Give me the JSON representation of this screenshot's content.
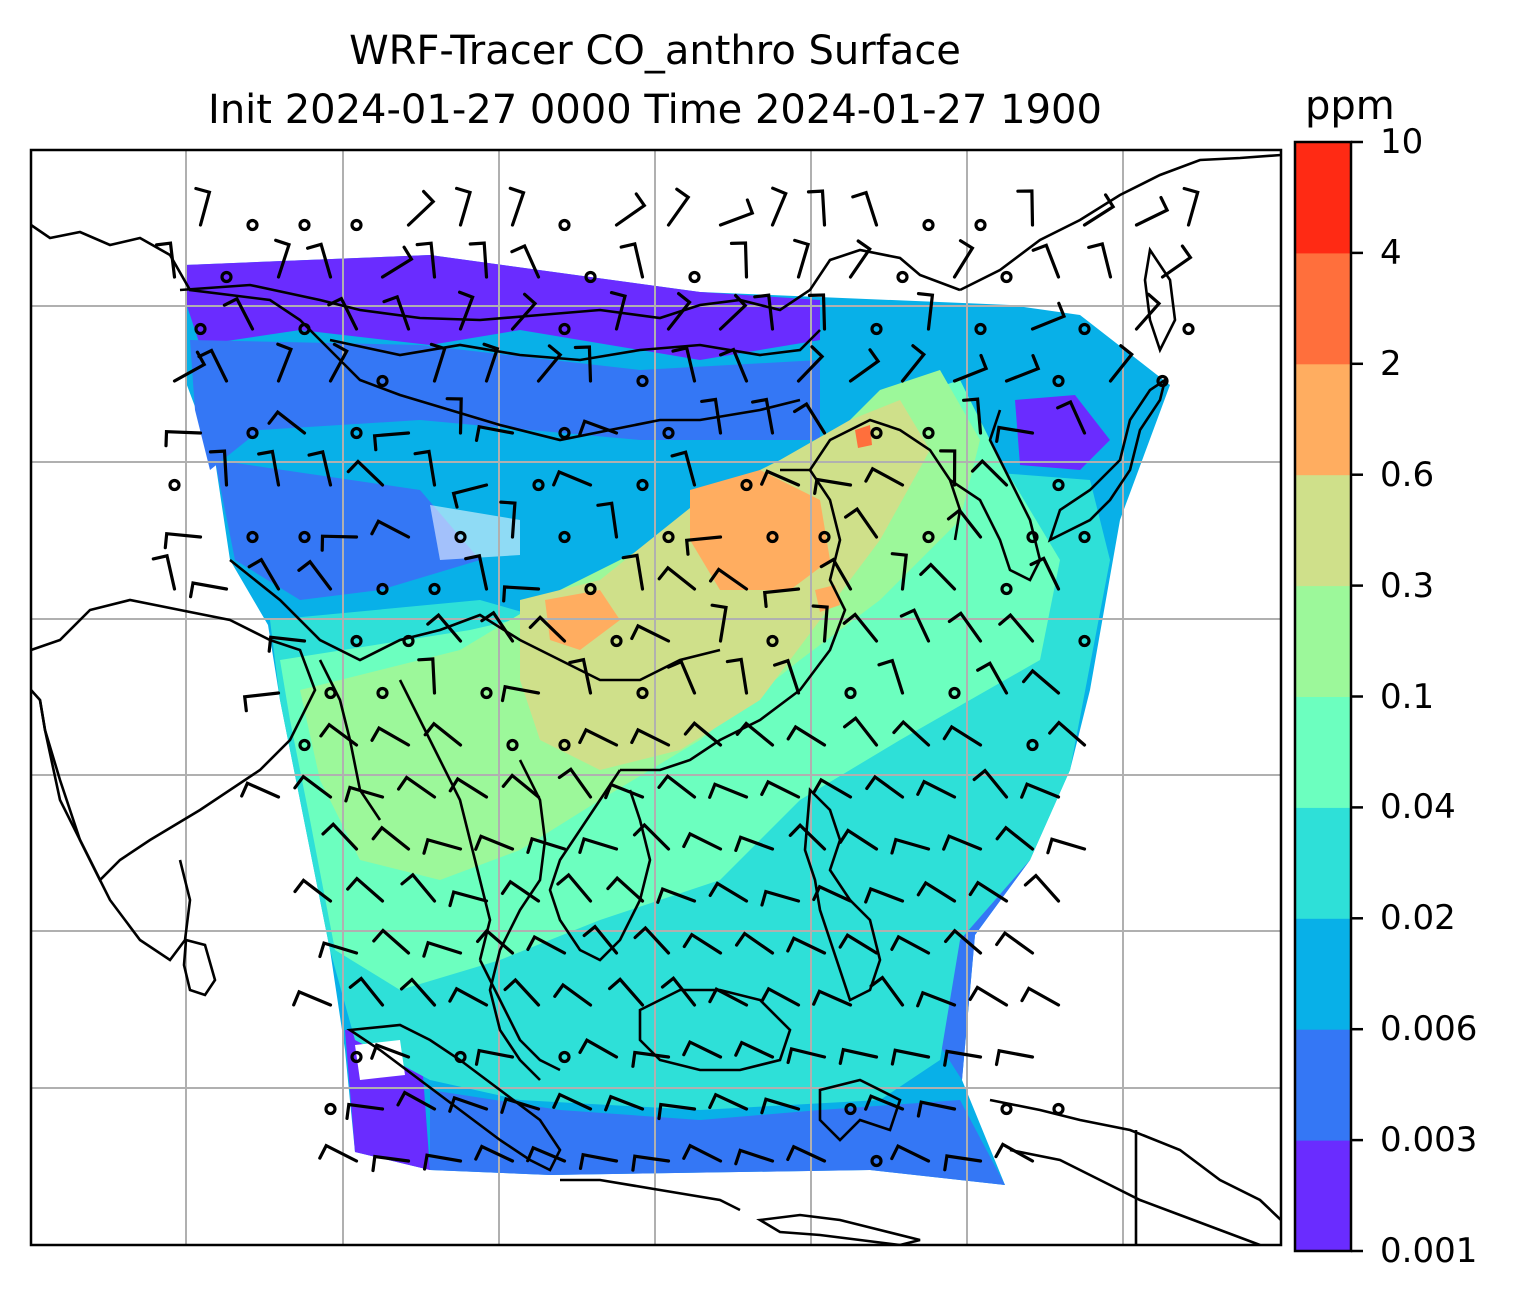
{
  "title": {
    "line1": "WRF-Tracer CO_anthro Surface",
    "line2": "Init 2024-01-27 0000 Time 2024-01-27 1900"
  },
  "colorbar": {
    "unit": "ppm",
    "levels": [
      "0.001",
      "0.003",
      "0.006",
      "0.02",
      "0.04",
      "0.1",
      "0.3",
      "0.6",
      "2",
      "4",
      "10"
    ],
    "colors": [
      "#6a2cff",
      "#3477f5",
      "#08b0e8",
      "#2ee0d8",
      "#6cffbf",
      "#9cf89a",
      "#cfe08a",
      "#ffad60",
      "#ff6f3c",
      "#ff2a14"
    ]
  },
  "map": {
    "field_colors": {
      "very_low": "#6a2cff",
      "low": "#3477f5",
      "mid_low": "#08b0e8",
      "mid": "#2ee0d8",
      "mid_high": "#6cffbf",
      "high": "#9cf89a",
      "higher": "#cfe08a",
      "hotspot": "#ffad60",
      "peak": "#ff6f3c"
    },
    "gridline_color": "#b0b0b0",
    "coastline_color": "#000000",
    "wind_barbs": "shown",
    "gridlines": "shown"
  }
}
